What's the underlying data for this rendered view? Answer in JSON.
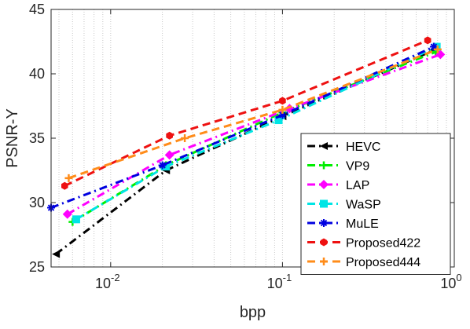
{
  "chart_data": {
    "type": "line",
    "xscale": "log",
    "xlabel": "bpp",
    "ylabel": "PSNR-Y",
    "xlim": [
      0.0045,
      1
    ],
    "ylim": [
      25,
      45
    ],
    "xticks": [
      {
        "value": 0.01,
        "base": "10",
        "exp": "-2"
      },
      {
        "value": 0.1,
        "base": "10",
        "exp": "-1"
      },
      {
        "value": 1,
        "base": "10",
        "exp": "0"
      }
    ],
    "yticks": [
      "25",
      "30",
      "35",
      "40",
      "45"
    ],
    "grid": "minor-vertical-dotted",
    "legend_position": "bottom-right",
    "series": [
      {
        "name": "HEVC",
        "color": "#000000",
        "marker": "triangle-left",
        "x": [
          0.0048,
          0.021,
          0.1,
          0.75
        ],
        "y": [
          26.0,
          32.5,
          36.7,
          41.8
        ]
      },
      {
        "name": "VP9",
        "color": "#00ee00",
        "marker": "plus",
        "x": [
          0.006,
          0.021,
          0.1,
          0.78
        ],
        "y": [
          28.5,
          32.9,
          37.0,
          41.7
        ]
      },
      {
        "name": "LAP",
        "color": "#ff00ff",
        "marker": "diamond",
        "x": [
          0.0056,
          0.022,
          0.11,
          0.83
        ],
        "y": [
          29.1,
          33.7,
          37.3,
          41.5
        ]
      },
      {
        "name": "WaSP",
        "color": "#00e5e5",
        "marker": "square",
        "x": [
          0.0063,
          0.021,
          0.095,
          0.79
        ],
        "y": [
          28.7,
          32.8,
          36.4,
          42.1
        ]
      },
      {
        "name": "MuLE",
        "color": "#0000e0",
        "marker": "star",
        "x": [
          0.0045,
          0.02,
          0.1,
          0.76
        ],
        "y": [
          29.6,
          32.9,
          36.8,
          42.1
        ]
      },
      {
        "name": "Proposed422",
        "color": "#ee1111",
        "marker": "hexagon",
        "x": [
          0.0054,
          0.022,
          0.1,
          0.7
        ],
        "y": [
          31.3,
          35.2,
          37.9,
          42.6
        ]
      },
      {
        "name": "Proposed444",
        "color": "#ff8c1a",
        "marker": "plus",
        "x": [
          0.0057,
          0.027,
          0.1,
          0.8
        ],
        "y": [
          31.9,
          35.0,
          37.2,
          41.9
        ]
      }
    ]
  }
}
